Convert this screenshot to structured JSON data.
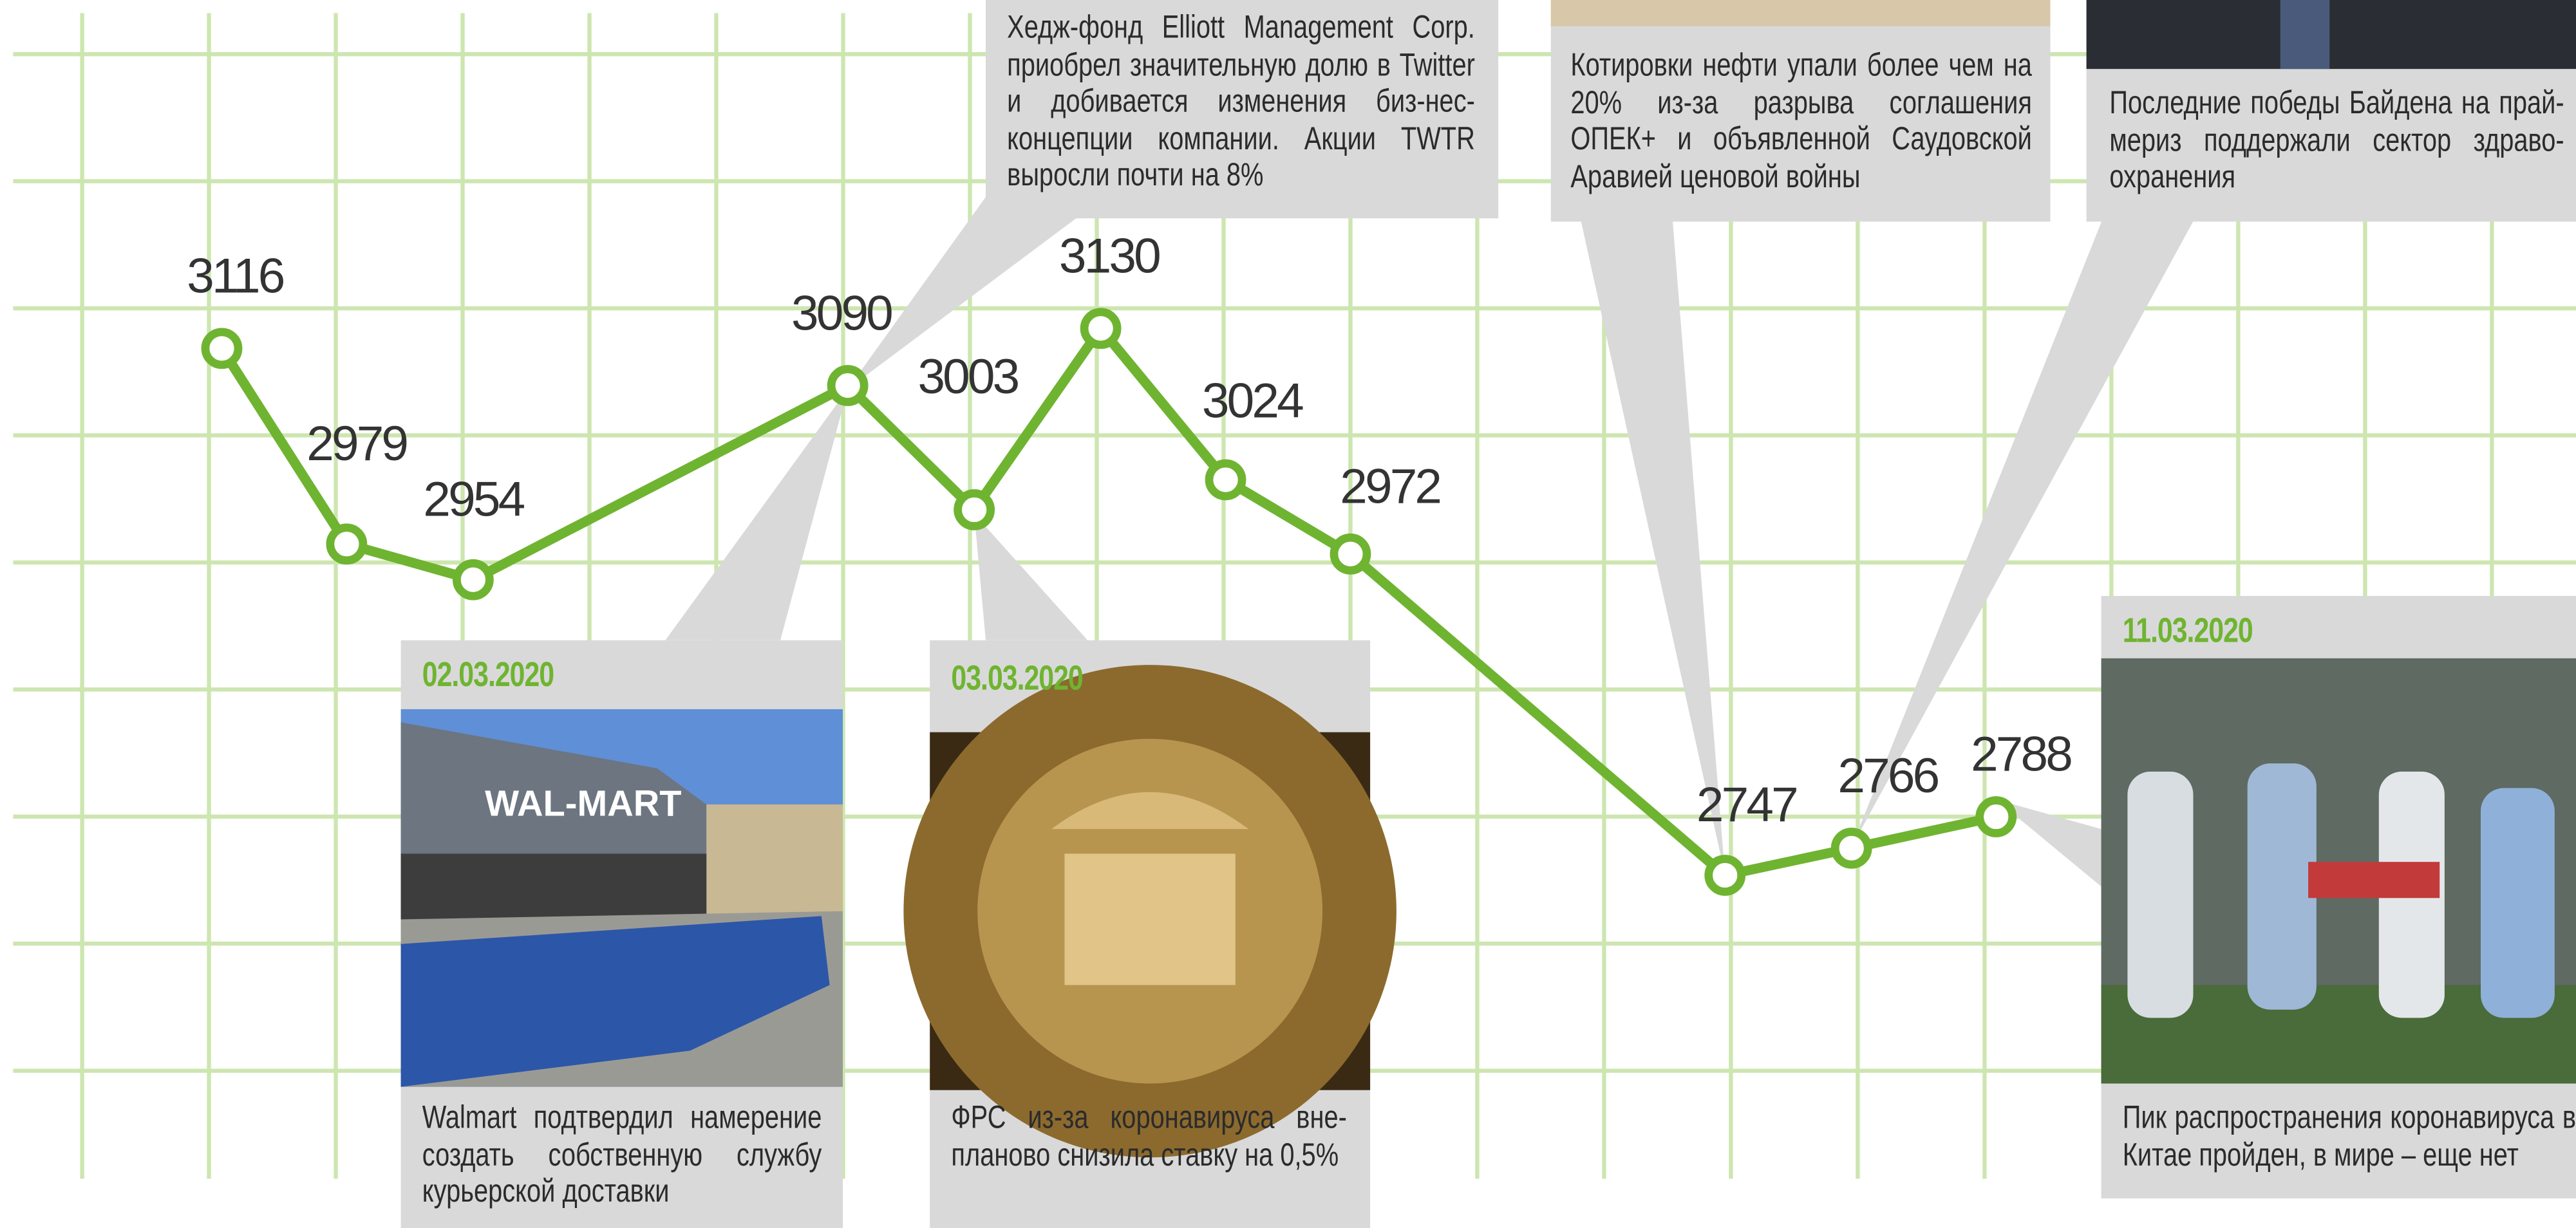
{
  "chart_data": {
    "type": "line",
    "categories": [
      null,
      null,
      null,
      null,
      null,
      null,
      null,
      null,
      null,
      null,
      null
    ],
    "values": [
      3116,
      2979,
      2954,
      3090,
      3003,
      3130,
      3024,
      2972,
      2747,
      2766,
      2788
    ],
    "color": "#6fb431",
    "ylim": [
      2500,
      3360
    ],
    "annotations": [
      {
        "text": "Хедж-фонд Elliott Management Corp. приобрел значительную долю в Twitter и добивается изменения биз-нес-концепции компании. Акции TWTR выросли почти на 8%"
      },
      {
        "text": "Котировки нефти упали более чем на 20% из-за разрыва соглашения ОПЕК+ и объявленной Саудовской Аравией ценовой войны"
      },
      {
        "text": "Последние победы Байдена на прай-мериз поддержали сектор здраво-охранения"
      },
      {
        "date": "02.03.2020",
        "text": "Walmart подтвердил намерение создать собственную службу курьерской доставки"
      },
      {
        "date": "03.03.2020",
        "text": "ФРС из-за коронавируса вне-планово снизила ставку на 0,5%"
      },
      {
        "date": "11.03.2020",
        "text": "Пик распространения коронавируса в Китае пройден, в мире – еще нет"
      }
    ]
  }
}
